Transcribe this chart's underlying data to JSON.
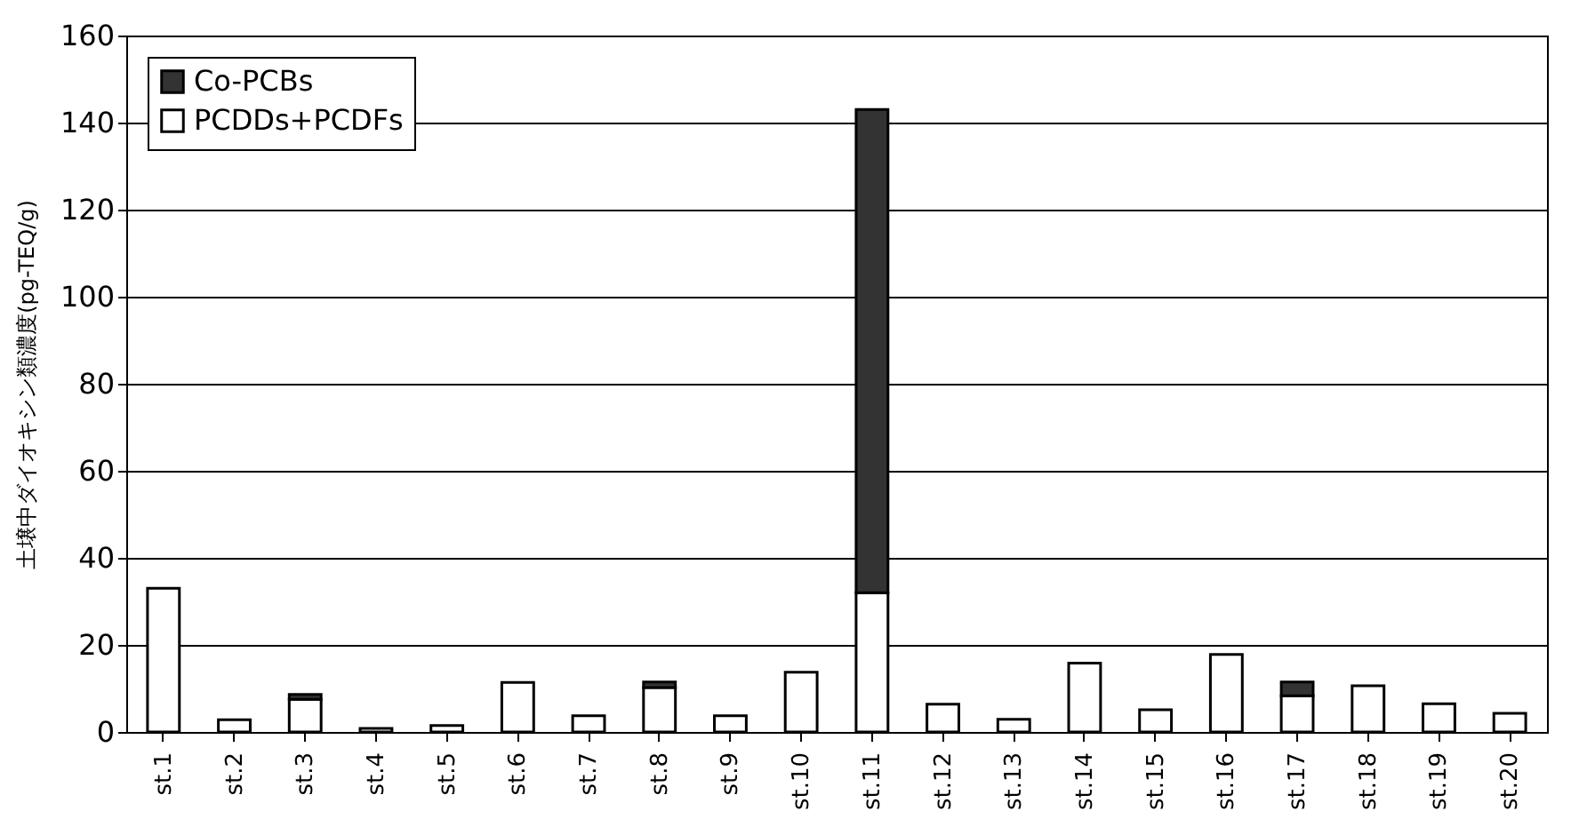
{
  "chart_data": {
    "type": "bar",
    "ylabel": "土壌中ダイオキシン類濃度(pg-TEQ/g)",
    "categories": [
      "st.1",
      "st.2",
      "st.3",
      "st.4",
      "st.5",
      "st.6",
      "st.7",
      "st.8",
      "st.9",
      "st.10",
      "st.11",
      "st.12",
      "st.13",
      "st.14",
      "st.15",
      "st.16",
      "st.17",
      "st.18",
      "st.19",
      "st.20"
    ],
    "series": [
      {
        "name": "PCDDs+PCDFs",
        "color": "#ffffff",
        "values": [
          33,
          2.8,
          7.5,
          0.8,
          1.5,
          11.4,
          3.7,
          10.2,
          3.7,
          13.7,
          32,
          6.4,
          2.9,
          15.8,
          5.1,
          17.8,
          8.3,
          10.6,
          6.5,
          4.3
        ]
      },
      {
        "name": "Co-PCBs",
        "color": "#333333",
        "values": [
          null,
          null,
          1.1,
          null,
          null,
          null,
          null,
          1.3,
          null,
          null,
          111,
          null,
          null,
          null,
          null,
          null,
          3.2,
          null,
          null,
          null
        ]
      }
    ],
    "stacked": true,
    "ylim": [
      0,
      160
    ],
    "yticks": [
      0,
      20,
      40,
      60,
      80,
      100,
      120,
      140,
      160
    ],
    "grid": "y",
    "legend": "top left"
  }
}
